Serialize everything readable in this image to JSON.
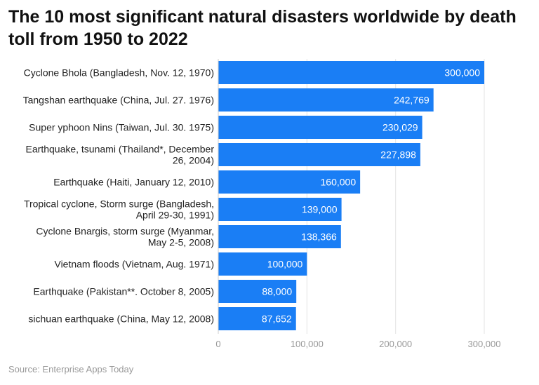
{
  "chart_data": {
    "type": "bar",
    "orientation": "horizontal",
    "title": "The 10 most significant natural disasters worldwide by death toll from 1950 to 2022",
    "categories": [
      [
        "Cyclone Bhola (Bangladesh, Nov. 12, 1970)"
      ],
      [
        "Tangshan earthquake (China, Jul. 27. 1976)"
      ],
      [
        "Super yphoon Nins (Taiwan, Jul. 30. 1975)"
      ],
      [
        "Earthquake, tsunami (Thailand*, December",
        "26, 2004)"
      ],
      [
        "Earthquake (Haiti, January 12, 2010)"
      ],
      [
        "Tropical cyclone, Storm surge (Bangladesh,",
        "April 29-30, 1991)"
      ],
      [
        "Cyclone Bnargis, storm surge (Myanmar,",
        "May 2-5, 2008)"
      ],
      [
        "Vietnam floods (Vietnam, Aug. 1971)"
      ],
      [
        "Earthquake (Pakistan**. October 8, 2005)"
      ],
      [
        "sichuan earthquake (China, May 12, 2008)"
      ]
    ],
    "values": [
      300000,
      242769,
      230029,
      227898,
      160000,
      139000,
      138366,
      100000,
      88000,
      87652
    ],
    "data_labels": [
      "300,000",
      "242,769",
      "230,029",
      "227,898",
      "160,000",
      "139,000",
      "138,366",
      "100,000",
      "88,000",
      "87,652"
    ],
    "xlim": [
      0,
      300000
    ],
    "xticks": [
      0,
      100000,
      200000,
      300000
    ],
    "xtick_labels": [
      "0",
      "100,000",
      "200,000",
      "300,000"
    ],
    "grid": true,
    "bar_color": "#1a7ef5"
  },
  "source": "Source: Enterprise Apps Today"
}
